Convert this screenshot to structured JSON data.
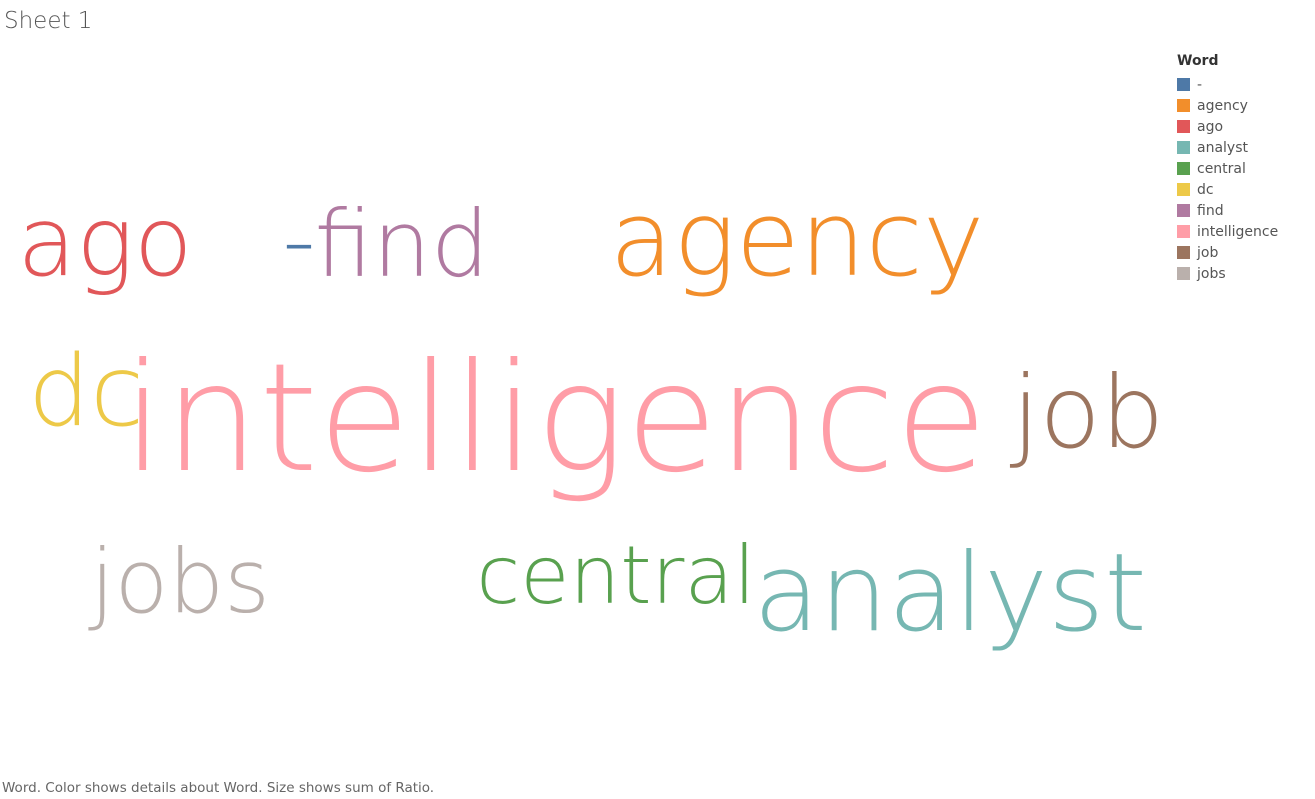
{
  "sheet_title": "Sheet 1",
  "caption": "Word.  Color shows details about Word.  Size shows sum of Ratio.",
  "legend": {
    "title": "Word",
    "items": [
      {
        "label": "-",
        "color": "#4e79a7"
      },
      {
        "label": "agency",
        "color": "#f28e2b"
      },
      {
        "label": "ago",
        "color": "#e15759"
      },
      {
        "label": "analyst",
        "color": "#76b7b2"
      },
      {
        "label": "central",
        "color": "#59a14f"
      },
      {
        "label": "dc",
        "color": "#edc948"
      },
      {
        "label": "find",
        "color": "#b07aa1"
      },
      {
        "label": "intelligence",
        "color": "#ff9da7"
      },
      {
        "label": "job",
        "color": "#9c755f"
      },
      {
        "label": "jobs",
        "color": "#bab0ac"
      }
    ]
  },
  "chart_data": {
    "type": "wordcloud",
    "words": [
      {
        "word": "intelligence",
        "color": "#ff9da7",
        "size_rank": 1
      },
      {
        "word": "analyst",
        "color": "#76b7b2",
        "size_rank": 2
      },
      {
        "word": "agency",
        "color": "#f28e2b",
        "size_rank": 3
      },
      {
        "word": "job",
        "color": "#9c755f",
        "size_rank": 4
      },
      {
        "word": "ago",
        "color": "#e15759",
        "size_rank": 5
      },
      {
        "word": "find",
        "color": "#b07aa1",
        "size_rank": 6
      },
      {
        "word": "jobs",
        "color": "#bab0ac",
        "size_rank": 7
      },
      {
        "word": "dc",
        "color": "#edc948",
        "size_rank": 8
      },
      {
        "word": "central",
        "color": "#59a14f",
        "size_rank": 9
      },
      {
        "word": "-",
        "color": "#4e79a7",
        "size_rank": 10
      }
    ]
  }
}
